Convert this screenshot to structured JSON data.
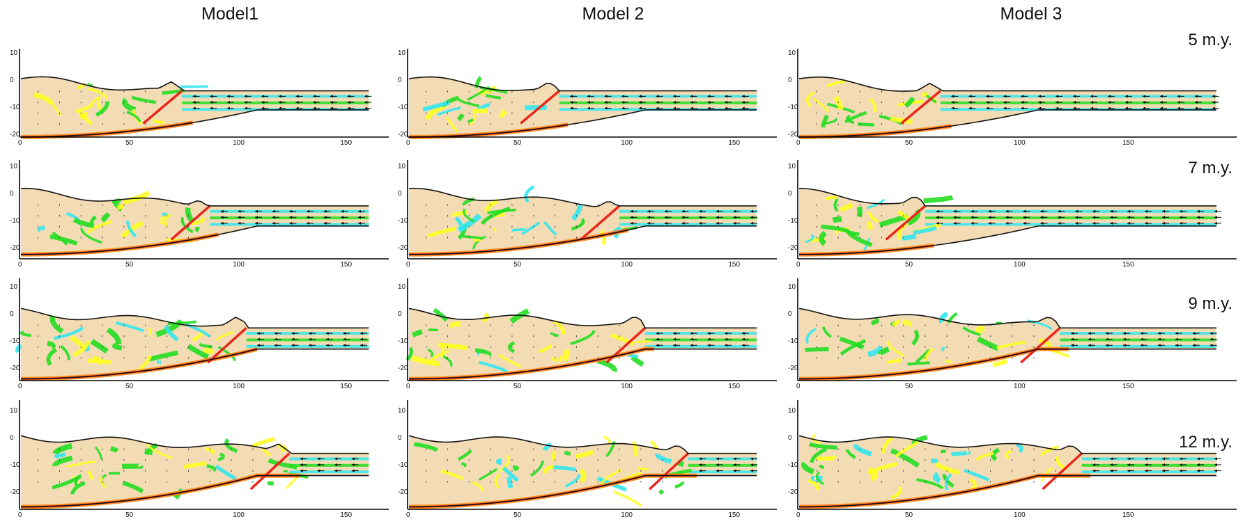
{
  "columns": [
    {
      "title": "Model1"
    },
    {
      "title": "Model 2"
    },
    {
      "title": "Model 3"
    }
  ],
  "time_steps": [
    {
      "label": "5 m.y."
    },
    {
      "label": "7 m.y."
    },
    {
      "label": "9 m.y."
    },
    {
      "label": "12 m.y."
    }
  ],
  "axes": {
    "x_ticks": [
      "0",
      "50",
      "100",
      "150"
    ],
    "y_ticks": [
      "10",
      "0",
      "-10",
      "-20"
    ]
  },
  "colors": {
    "crust": "#f3dcb4",
    "cyan": "#33e6ee",
    "green": "#22dd22",
    "yellow": "#ffff22",
    "orange": "#ff8c1a",
    "red": "#e8261a",
    "outline": "#111111"
  }
}
